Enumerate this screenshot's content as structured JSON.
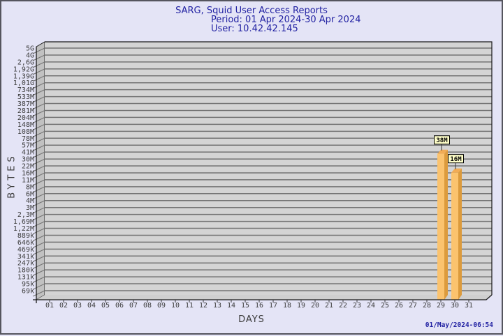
{
  "footer": {
    "timestamp": "01/May/2024-06:54"
  },
  "chart_data": {
    "type": "bar",
    "title": "SARG, Squid User Access Reports",
    "period": "Period: 01 Apr 2024-30 Apr 2024",
    "user_line": "User: 10.42.42.145",
    "xlabel": "DAYS",
    "ylabel": "BYTES",
    "y_scale": "log",
    "ylim_bytes": [
      69000,
      5000000000
    ],
    "grid": true,
    "legend": "none",
    "y_tick_labels": [
      "5G",
      "4G",
      "2,6G",
      "1,92G",
      "1,39G",
      "1,01G",
      "734M",
      "533M",
      "387M",
      "281M",
      "204M",
      "148M",
      "108M",
      "78M",
      "57M",
      "41M",
      "30M",
      "22M",
      "16M",
      "11M",
      "8M",
      "6M",
      "4M",
      "3M",
      "2,3M",
      "1,69M",
      "1,22M",
      "889k",
      "646k",
      "469k",
      "341k",
      "247k",
      "180k",
      "131k",
      "95k",
      "69k"
    ],
    "x_tick_labels": [
      "01",
      "02",
      "03",
      "04",
      "05",
      "06",
      "07",
      "08",
      "09",
      "10",
      "11",
      "12",
      "13",
      "14",
      "15",
      "16",
      "17",
      "18",
      "19",
      "20",
      "21",
      "22",
      "23",
      "24",
      "25",
      "26",
      "27",
      "28",
      "29",
      "30",
      "31"
    ],
    "bars": [
      {
        "day": "29",
        "label": "38M",
        "bytes": 38000000
      },
      {
        "day": "30",
        "label": "16M",
        "bytes": 16000000
      }
    ],
    "colors": {
      "page_bg": "#E4E4F6",
      "page_border": "#55555E",
      "title_text": "#2323A3",
      "plot_bg": "#D4D4D4",
      "wall_bg": "#C1C1C1",
      "floor_bg": "#CFCFCF",
      "grid_line": "#747474",
      "frame_line": "#1A1A1A",
      "axis_text": "#3D3D3D",
      "bar_face": "#FBC36E",
      "bar_side": "#DC9B3D",
      "bar_top": "#F2AC55",
      "value_box_bg": "#FFFFC8",
      "value_box_border": "#000000",
      "value_text": "#000000",
      "timestamp_text": "#2323A3"
    }
  }
}
